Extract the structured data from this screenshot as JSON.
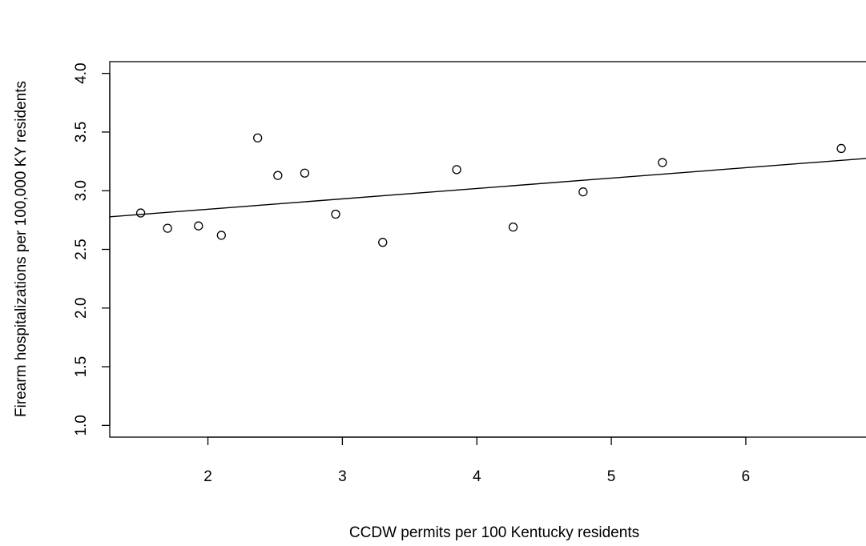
{
  "chart_data": {
    "type": "scatter",
    "title": "",
    "xlabel": "CCDW permits per 100 Kentucky residents",
    "ylabel": "Firearm hospitalizations per 100,000 KY residents",
    "xlim": [
      1.27,
      6.9
    ],
    "ylim": [
      0.9,
      4.1
    ],
    "x_ticks": [
      2,
      3,
      4,
      5,
      6
    ],
    "x_tick_labels": [
      "2",
      "3",
      "4",
      "5",
      "6"
    ],
    "y_ticks": [
      1.0,
      1.5,
      2.0,
      2.5,
      3.0,
      3.5,
      4.0
    ],
    "y_tick_labels": [
      "1.0",
      "1.5",
      "2.0",
      "2.5",
      "3.0",
      "3.5",
      "4.0"
    ],
    "grid": false,
    "legend": "none",
    "marker": "open-circle",
    "color": "#000000",
    "points": [
      {
        "x": 1.5,
        "y": 2.81
      },
      {
        "x": 1.7,
        "y": 2.68
      },
      {
        "x": 1.93,
        "y": 2.7
      },
      {
        "x": 2.1,
        "y": 2.62
      },
      {
        "x": 2.37,
        "y": 3.45
      },
      {
        "x": 2.52,
        "y": 3.13
      },
      {
        "x": 2.72,
        "y": 3.15
      },
      {
        "x": 2.95,
        "y": 2.8
      },
      {
        "x": 3.3,
        "y": 2.56
      },
      {
        "x": 3.85,
        "y": 3.18
      },
      {
        "x": 4.27,
        "y": 2.69
      },
      {
        "x": 4.79,
        "y": 2.99
      },
      {
        "x": 5.38,
        "y": 3.24
      },
      {
        "x": 6.71,
        "y": 3.36
      }
    ],
    "fit_line": {
      "type": "linear",
      "intercept": 2.665,
      "slope": 0.0885
    }
  }
}
